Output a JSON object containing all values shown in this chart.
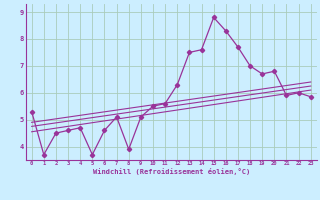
{
  "xlabel": "Windchill (Refroidissement éolien,°C)",
  "bg_color": "#cceeff",
  "grid_color": "#aaccbb",
  "line_color": "#993399",
  "spine_color": "#993399",
  "xlim": [
    -0.5,
    23.5
  ],
  "ylim": [
    3.5,
    9.3
  ],
  "xticks": [
    0,
    1,
    2,
    3,
    4,
    5,
    6,
    7,
    8,
    9,
    10,
    11,
    12,
    13,
    14,
    15,
    16,
    17,
    18,
    19,
    20,
    21,
    22,
    23
  ],
  "yticks": [
    4,
    5,
    6,
    7,
    8,
    9
  ],
  "main_x": [
    0,
    1,
    2,
    3,
    4,
    5,
    6,
    7,
    8,
    9,
    10,
    11,
    12,
    13,
    14,
    15,
    16,
    17,
    18,
    19,
    20,
    21,
    22,
    23
  ],
  "main_y": [
    5.3,
    3.7,
    4.5,
    4.6,
    4.7,
    3.7,
    4.6,
    5.1,
    3.9,
    5.1,
    5.5,
    5.6,
    6.3,
    7.5,
    7.6,
    8.8,
    8.3,
    7.7,
    7.0,
    6.7,
    6.8,
    5.9,
    6.0,
    5.85
  ],
  "line1_x": [
    0,
    23
  ],
  "line1_y": [
    4.55,
    6.1
  ],
  "line2_x": [
    0,
    23
  ],
  "line2_y": [
    4.75,
    6.25
  ],
  "line3_x": [
    0,
    23
  ],
  "line3_y": [
    4.9,
    6.4
  ]
}
